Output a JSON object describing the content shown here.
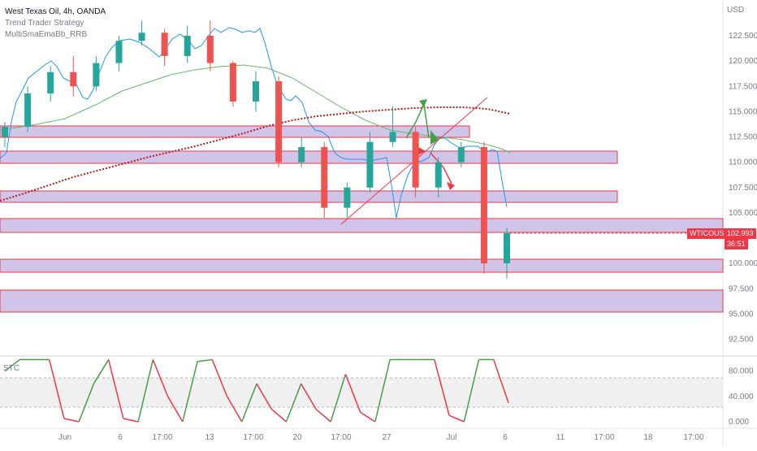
{
  "legend": {
    "symbol": "West Texas Oil, 4h, OANDA",
    "indicator1": "Trend Trader Strategy",
    "indicator2": "MultiSmaEmaBb_RRB"
  },
  "price_axis": {
    "currency": "USD",
    "ticks": [
      "122.500",
      "120.000",
      "117.500",
      "115.000",
      "112.500",
      "110.000",
      "107.500",
      "105.000",
      "100.000",
      "97.500",
      "95.000",
      "92.500"
    ]
  },
  "last_price": {
    "symbol": "WTICOUSD",
    "price": "102.993",
    "countdown": "36:51"
  },
  "oscillator": {
    "label": "STC",
    "ticks": [
      "80.000",
      "40.000",
      "0.000"
    ]
  },
  "time_axis": [
    "Jun",
    "6",
    "17:00",
    "13",
    "17:00",
    "20",
    "17:00",
    "27",
    "Jul",
    "6",
    "11",
    "17:00",
    "18",
    "17:00"
  ],
  "colors": {
    "up": "#26a69a",
    "down": "#ef5350",
    "zone_fill": "#d1c4e9",
    "zone_border": "#f23645",
    "bb": "#2196f3",
    "sma": "#66bb6a",
    "ema": "#b71c1c"
  },
  "chart_data": [
    {
      "type": "candlestick",
      "title": "West Texas Oil, 4h, OANDA",
      "ylabel": "USD",
      "ylim": [
        91.5,
        124.5
      ],
      "support_resistance_zones": [
        [
          112.2,
          113.3
        ],
        [
          110.0,
          111.2
        ],
        [
          106.8,
          107.9
        ],
        [
          102.9,
          104.0
        ],
        [
          99.4,
          100.4
        ],
        [
          95.5,
          97.6
        ]
      ],
      "candles_approx": [
        {
          "t": "Jun 1",
          "o": 112.5,
          "h": 114.0,
          "l": 111.5,
          "c": 113.5
        },
        {
          "t": "Jun 2",
          "o": 113.5,
          "h": 117.5,
          "l": 113.0,
          "c": 116.8
        },
        {
          "t": "Jun 3",
          "o": 116.8,
          "h": 119.5,
          "l": 116.0,
          "c": 118.9
        },
        {
          "t": "Jun 5",
          "o": 118.9,
          "h": 120.5,
          "l": 116.5,
          "c": 117.5
        },
        {
          "t": "Jun 6",
          "o": 117.5,
          "h": 120.5,
          "l": 117.0,
          "c": 119.8
        },
        {
          "t": "Jun 8",
          "o": 119.8,
          "h": 122.5,
          "l": 119.0,
          "c": 122.0
        },
        {
          "t": "Jun 9",
          "o": 122.0,
          "h": 124.0,
          "l": 121.5,
          "c": 122.8
        },
        {
          "t": "Jun 10",
          "o": 122.8,
          "h": 123.2,
          "l": 119.5,
          "c": 120.5
        },
        {
          "t": "Jun 13",
          "o": 120.5,
          "h": 123.5,
          "l": 119.8,
          "c": 122.5
        },
        {
          "t": "Jun 14",
          "o": 122.5,
          "h": 124.0,
          "l": 119.0,
          "c": 119.8
        },
        {
          "t": "Jun 15",
          "o": 119.8,
          "h": 120.0,
          "l": 115.5,
          "c": 116.0
        },
        {
          "t": "Jun 16",
          "o": 116.0,
          "h": 119.0,
          "l": 115.0,
          "c": 118.0
        },
        {
          "t": "Jun 17",
          "o": 118.0,
          "h": 118.5,
          "l": 109.5,
          "c": 110.0
        },
        {
          "t": "Jun 20",
          "o": 110.0,
          "h": 112.5,
          "l": 109.5,
          "c": 111.5
        },
        {
          "t": "Jun 22",
          "o": 111.5,
          "h": 112.0,
          "l": 104.5,
          "c": 105.5
        },
        {
          "t": "Jun 24",
          "o": 105.5,
          "h": 108.0,
          "l": 104.5,
          "c": 107.5
        },
        {
          "t": "Jun 27",
          "o": 107.5,
          "h": 113.0,
          "l": 107.0,
          "c": 112.0
        },
        {
          "t": "Jun 29",
          "o": 112.0,
          "h": 115.5,
          "l": 111.5,
          "c": 113.0
        },
        {
          "t": "Jun 30",
          "o": 113.0,
          "h": 113.5,
          "l": 106.5,
          "c": 107.5
        },
        {
          "t": "Jul 1",
          "o": 107.5,
          "h": 110.5,
          "l": 106.5,
          "c": 110.0
        },
        {
          "t": "Jul 4",
          "o": 110.0,
          "h": 112.0,
          "l": 109.5,
          "c": 111.5
        },
        {
          "t": "Jul 5",
          "o": 111.5,
          "h": 112.0,
          "l": 99.0,
          "c": 100.0
        },
        {
          "t": "Jul 6",
          "o": 100.0,
          "h": 103.5,
          "l": 98.5,
          "c": 102.993
        }
      ],
      "last_price": 102.993
    },
    {
      "type": "line",
      "title": "STC",
      "ylim": [
        -8,
        110
      ],
      "ticks": [
        0,
        40,
        80
      ],
      "series": [
        {
          "values": [
            80,
            98,
            98,
            98,
            5,
            0,
            60,
            98,
            5,
            0,
            98,
            40,
            0,
            95,
            98,
            40,
            0,
            60,
            20,
            0,
            60,
            20,
            0,
            75,
            15,
            0,
            98,
            98,
            98,
            98,
            10,
            0,
            98,
            98,
            30
          ]
        }
      ]
    }
  ]
}
